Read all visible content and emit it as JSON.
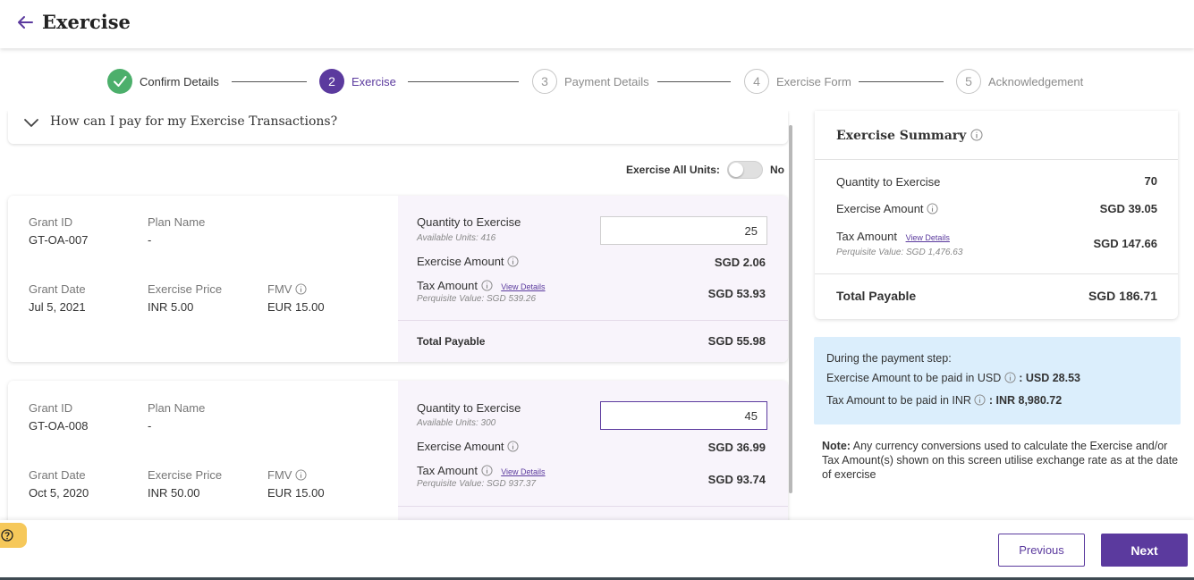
{
  "header": {
    "title": "Exercise"
  },
  "stepper": {
    "steps": [
      {
        "number": "",
        "label": "Confirm Details",
        "state": "done"
      },
      {
        "number": "2",
        "label": "Exercise",
        "state": "active"
      },
      {
        "number": "3",
        "label": "Payment Details",
        "state": "pending"
      },
      {
        "number": "4",
        "label": "Exercise Form",
        "state": "pending"
      },
      {
        "number": "5",
        "label": "Acknowledgement",
        "state": "pending"
      }
    ]
  },
  "faq": {
    "question": "How can I pay for my Exercise Transactions?"
  },
  "exercise_all": {
    "label": "Exercise All Units:",
    "state": "No",
    "enabled": false
  },
  "grants": [
    {
      "grant_id_label": "Grant ID",
      "grant_id": "GT-OA-007",
      "plan_name_label": "Plan Name",
      "plan_name": "-",
      "grant_date_label": "Grant Date",
      "grant_date": "Jul 5, 2021",
      "exercise_price_label": "Exercise Price",
      "exercise_price": "INR  5.00",
      "fmv_label": "FMV",
      "fmv": "EUR  15.00",
      "qty_label": "Quantity to Exercise",
      "available": "Available Units: 416",
      "qty": "25",
      "exercise_amount_label": "Exercise Amount",
      "exercise_amount": "SGD  2.06",
      "tax_label": "Tax Amount",
      "view_details": "View Details",
      "perquisite": "Perquisite Value:  SGD   539.26",
      "tax_amount": "SGD  53.93",
      "total_label": "Total Payable",
      "total": "SGD  55.98"
    },
    {
      "grant_id_label": "Grant ID",
      "grant_id": "GT-OA-008",
      "plan_name_label": "Plan Name",
      "plan_name": "-",
      "grant_date_label": "Grant Date",
      "grant_date": "Oct 5, 2020",
      "exercise_price_label": "Exercise Price",
      "exercise_price": "INR  50.00",
      "fmv_label": "FMV",
      "fmv": "EUR  15.00",
      "qty_label": "Quantity to Exercise",
      "available": "Available Units: 300",
      "qty": "45",
      "exercise_amount_label": "Exercise Amount",
      "exercise_amount": "SGD  36.99",
      "tax_label": "Tax Amount",
      "view_details": "View Details",
      "perquisite": "Perquisite Value:  SGD   937.37",
      "tax_amount": "SGD  93.74"
    }
  ],
  "summary": {
    "title": "Exercise Summary",
    "qty_label": "Quantity to Exercise",
    "qty": "70",
    "exercise_amount_label": "Exercise Amount",
    "exercise_amount": "SGD 39.05",
    "tax_label": "Tax Amount",
    "view_details": "View Details",
    "perquisite": "Perquisite Value: SGD 1,476.63",
    "tax_amount": "SGD 147.66",
    "total_label": "Total Payable",
    "total": "SGD 186.71"
  },
  "payment_notice": {
    "heading": "During the payment step:",
    "usd_label": "Exercise Amount to be paid in USD",
    "usd_value": ": USD  28.53",
    "inr_label": "Tax Amount to be paid in INR",
    "inr_value": ": INR  8,980.72"
  },
  "note": {
    "prefix": "Note:",
    "text": " Any currency conversions used to calculate the Exercise and/or Tax Amount(s) shown on this screen utilise exchange rate as at the date of exercise"
  },
  "footer": {
    "previous_label": "Previous",
    "next_label": "Next"
  },
  "colors": {
    "accent": "#5b3a9e",
    "success": "#4caf6b",
    "notice_bg": "#dbeefc",
    "help_tab": "#f6c85a"
  }
}
